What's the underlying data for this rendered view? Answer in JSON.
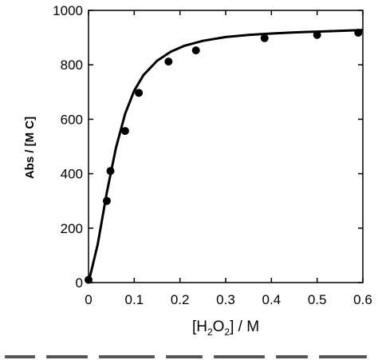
{
  "chart_data": {
    "type": "scatter",
    "title": "",
    "xlabel": "[H2O2] / M",
    "xlabel_parts": {
      "open": "[H",
      "sub1": "2",
      "mid": "O",
      "sub2": "2",
      "close": "] / M"
    },
    "ylabel": "Abs / [M C]",
    "xlim": [
      0,
      0.6
    ],
    "ylim": [
      0,
      1000
    ],
    "x_ticks": [
      0,
      0.1,
      0.2,
      0.3,
      0.4,
      0.5,
      0.6
    ],
    "x_tick_labels": [
      "0",
      "0.1",
      "0.2",
      "0.3",
      "0.4",
      "0.5",
      "0.6"
    ],
    "y_ticks": [
      0,
      200,
      400,
      600,
      800,
      1000
    ],
    "y_tick_labels": [
      "0",
      "200",
      "400",
      "600",
      "800",
      "1000"
    ],
    "grid": false,
    "legend": "none",
    "series": [
      {
        "kind": "points",
        "x": [
          0.0,
          0.04,
          0.048,
          0.08,
          0.11,
          0.175,
          0.235,
          0.385,
          0.5,
          0.59
        ],
        "y": [
          10,
          300,
          410,
          557,
          697,
          812,
          853,
          898,
          910,
          918
        ]
      },
      {
        "kind": "fit-line",
        "x": [
          0,
          0.02,
          0.04,
          0.06,
          0.08,
          0.1,
          0.12,
          0.15,
          0.18,
          0.21,
          0.25,
          0.3,
          0.35,
          0.4,
          0.45,
          0.5,
          0.55,
          0.6
        ],
        "y": [
          0,
          140,
          330,
          495,
          620,
          705,
          762,
          815,
          848,
          870,
          888,
          902,
          910,
          915,
          919,
          922,
          925,
          928
        ]
      }
    ],
    "colors": {
      "points": "#000000",
      "line": "#000000"
    }
  }
}
